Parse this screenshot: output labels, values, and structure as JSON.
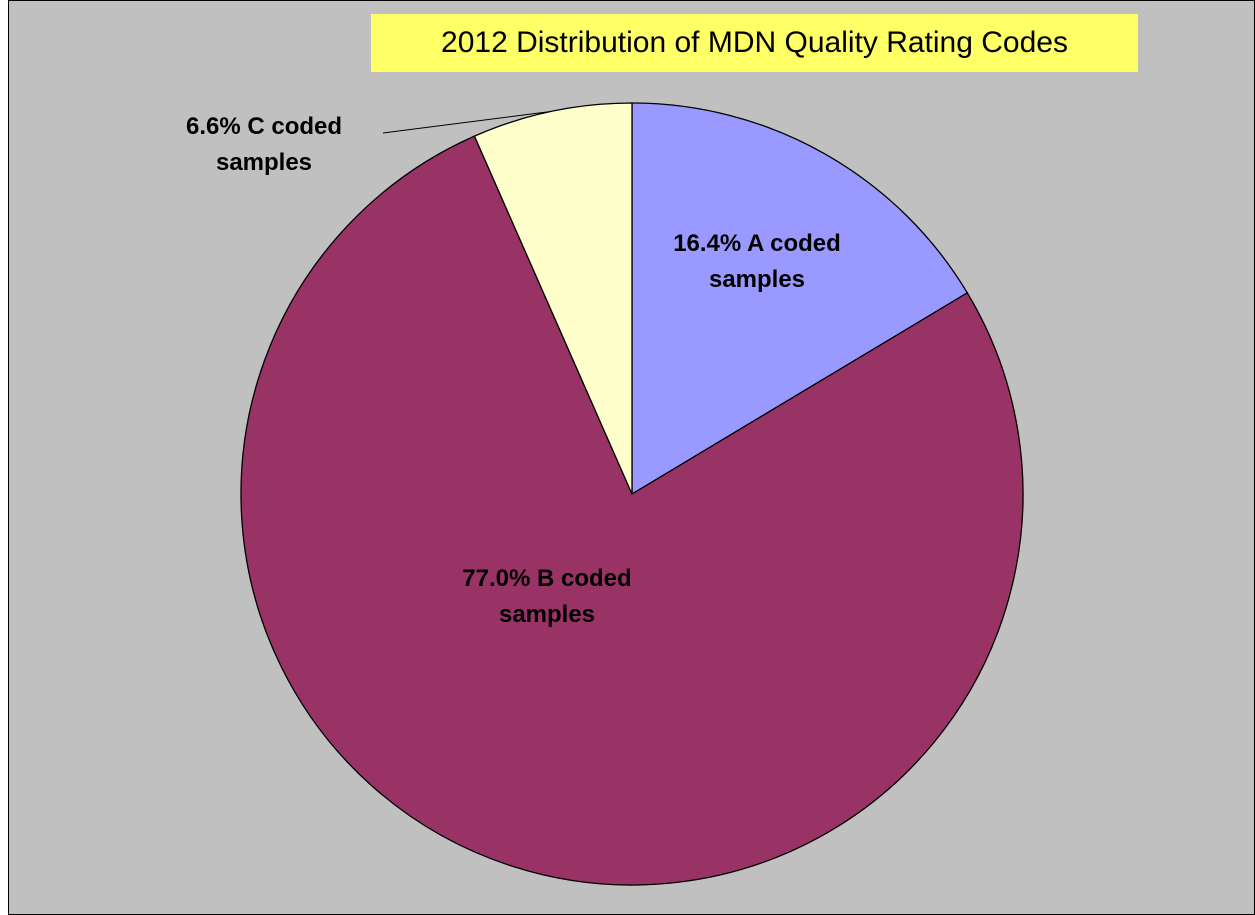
{
  "chart_data": {
    "type": "pie",
    "title": "2012 Distribution of MDN Quality Rating Codes",
    "values": [
      16.4,
      77.0,
      6.6
    ],
    "value_labels": [
      "16.4% A coded samples",
      "77.0% B coded samples",
      "6.6% C coded samples"
    ],
    "colors": [
      "#9999ff",
      "#993366",
      "#ffffcc"
    ]
  }
}
